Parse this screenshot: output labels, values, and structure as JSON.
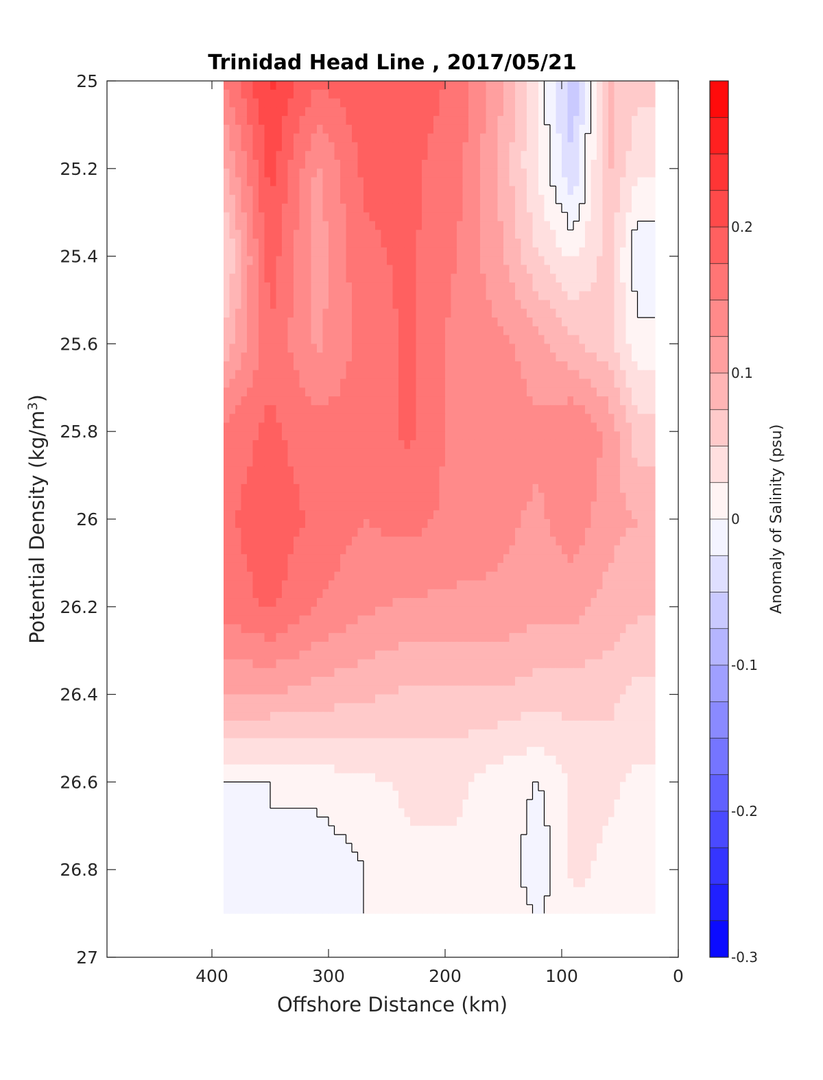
{
  "chart_data": {
    "type": "contour",
    "title": "Trinidad Head Line , 2017/05/21",
    "xlabel": "Offshore Distance (km)",
    "ylabel": "Potential Density (kg/m",
    "ylabel_sup": "3",
    "ylabel_close": ")",
    "x_reversed": true,
    "y_reversed": true,
    "xlim": [
      0,
      490
    ],
    "ylim": [
      25,
      27
    ],
    "x_ticks": [
      "400",
      "300",
      "200",
      "100",
      "0"
    ],
    "y_ticks": [
      "25",
      "25.2",
      "25.4",
      "25.6",
      "25.8",
      "26",
      "26.2",
      "26.4",
      "26.6",
      "26.8",
      "27"
    ],
    "colorbar": {
      "label": "Anomaly of Salinity (psu)",
      "range": [
        -0.3,
        0.3
      ],
      "levels": 24,
      "ticks": [
        "-0.3",
        "-0.2",
        "-0.1",
        "0",
        "0.1",
        "0.2"
      ],
      "color_min": "#0000ff",
      "color_zero": "#ffffff",
      "color_max": "#ff0000"
    },
    "zero_contour": "black line",
    "data_extent": {
      "x": [
        20,
        390
      ],
      "y": [
        25,
        26.9
      ]
    },
    "series": [
      {
        "x": [
          390,
          350,
          310,
          270,
          230,
          190,
          150,
          120,
          90,
          60,
          35
        ],
        "y_levels": [
          25.0,
          25.2,
          25.4,
          25.6,
          25.8,
          26.0,
          26.2,
          26.4,
          26.6,
          26.8,
          26.9
        ],
        "values": [
          [
            0.15,
            0.23,
            0.18,
            0.19,
            0.19,
            0.17,
            0.1,
            0.02,
            -0.07,
            0.08,
            0.06
          ],
          [
            0.09,
            0.21,
            0.12,
            0.18,
            0.18,
            0.16,
            0.09,
            0.02,
            -0.05,
            0.08,
            0.03
          ],
          [
            0.04,
            0.19,
            0.11,
            0.17,
            0.18,
            0.15,
            0.1,
            0.05,
            0.02,
            0.06,
            -0.02
          ],
          [
            0.08,
            0.17,
            0.12,
            0.16,
            0.18,
            0.14,
            0.13,
            0.11,
            0.08,
            0.06,
            0.01
          ],
          [
            0.16,
            0.18,
            0.16,
            0.16,
            0.18,
            0.14,
            0.14,
            0.13,
            0.15,
            0.12,
            0.06
          ],
          [
            0.17,
            0.19,
            0.17,
            0.15,
            0.16,
            0.14,
            0.13,
            0.12,
            0.14,
            0.11,
            0.1
          ],
          [
            0.16,
            0.18,
            0.15,
            0.13,
            0.12,
            0.12,
            0.12,
            0.11,
            0.11,
            0.09,
            0.08
          ],
          [
            0.1,
            0.1,
            0.09,
            0.08,
            0.07,
            0.07,
            0.07,
            0.06,
            0.06,
            0.06,
            0.04
          ],
          [
            0.0,
            0.0,
            0.01,
            0.02,
            0.03,
            0.03,
            0.01,
            0.0,
            0.03,
            0.03,
            0.02
          ],
          [
            -0.02,
            0.0,
            -0.02,
            0.0,
            0.02,
            0.02,
            0.02,
            -0.02,
            0.03,
            0.02,
            0.0
          ],
          [
            -0.02,
            -0.01,
            -0.02,
            0.0,
            0.02,
            0.02,
            0.01,
            0.0,
            0.02,
            0.02,
            0.0
          ]
        ]
      }
    ]
  }
}
